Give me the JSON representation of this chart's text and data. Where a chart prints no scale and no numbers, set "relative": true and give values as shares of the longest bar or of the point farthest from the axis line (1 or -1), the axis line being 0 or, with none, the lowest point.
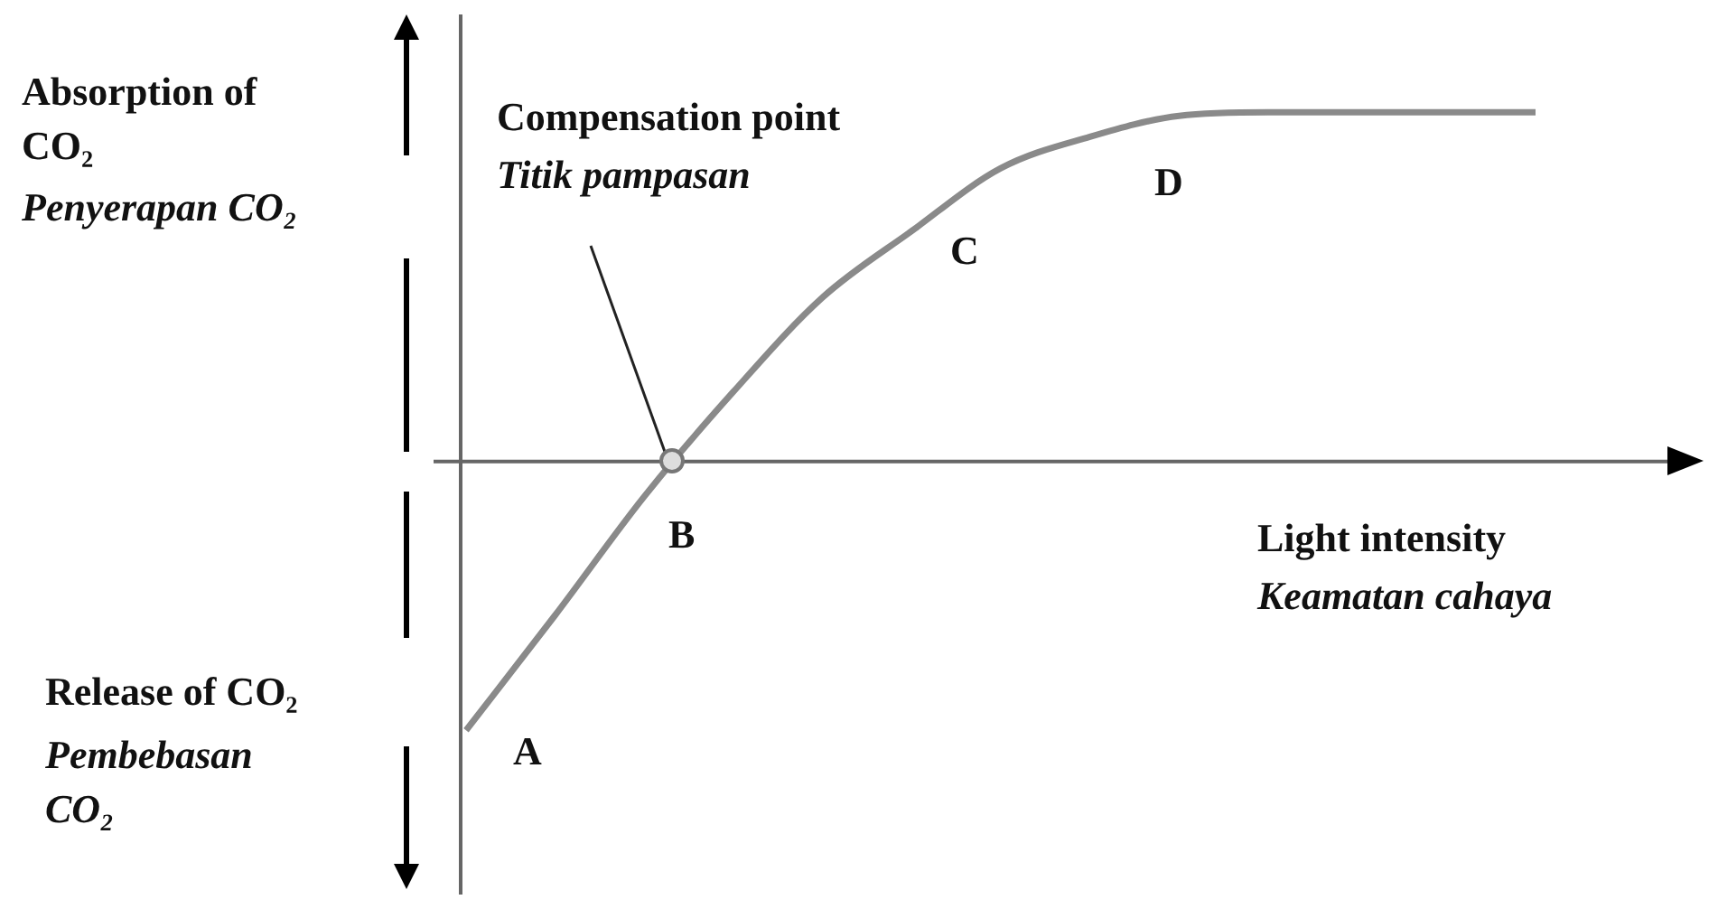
{
  "chart_data": {
    "type": "line",
    "relative": true,
    "marker": "none",
    "xlabel": "Light intensity",
    "categories": [
      null,
      null,
      null,
      null,
      null,
      null,
      null,
      null,
      null,
      null,
      null,
      null,
      null
    ],
    "series": [
      {
        "color": "#8a8a8a",
        "values": [
          -0.77,
          -0.44,
          -0.1,
          0.2,
          0.47,
          0.66,
          0.84,
          0.93,
          0.99,
          1,
          1,
          1,
          1
        ]
      }
    ],
    "annotations": [
      "Absorption of CO₂",
      "Penyerapan CO₂",
      "Compensation point",
      "Titik pampasan",
      "A",
      "B",
      "C",
      "D",
      "Keamatan cahaya",
      "Release of CO₂",
      "Pembebasan CO₂"
    ]
  }
}
